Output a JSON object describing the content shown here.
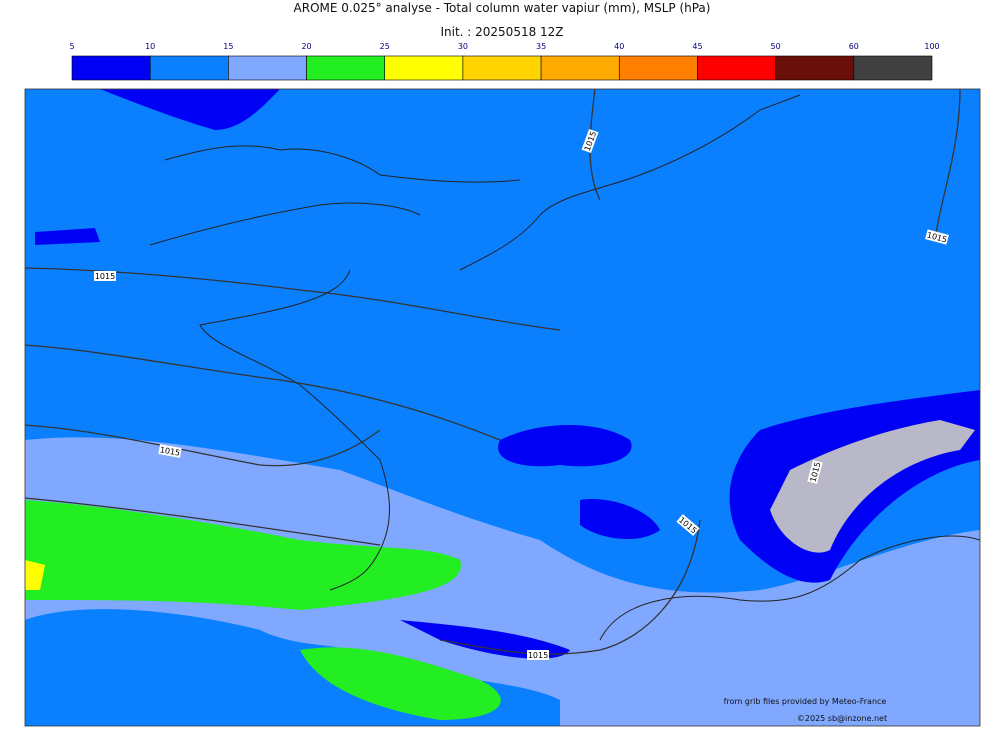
{
  "header": {
    "title": "AROME 0.025° analyse - Total column water vapiur (mm), MSLP (hPa)",
    "init": "Init. : 20250518 12Z"
  },
  "colorbar": {
    "ticks": [
      5,
      10,
      15,
      20,
      25,
      30,
      35,
      40,
      45,
      50,
      60,
      100
    ],
    "colors": [
      "#0000f5",
      "#0a80ff",
      "#80a8ff",
      "#22ee22",
      "#ffff00",
      "#ffd400",
      "#ffaa00",
      "#ff8000",
      "#ff0000",
      "#6b0f0a",
      "#404040"
    ]
  },
  "isobar_labels": [
    1015,
    1015,
    1015,
    1015,
    1015,
    1015,
    1015
  ],
  "credits": {
    "source": "from grib files provided by Meteo-France",
    "copyright": "©2025 sb@inzone.net"
  }
}
